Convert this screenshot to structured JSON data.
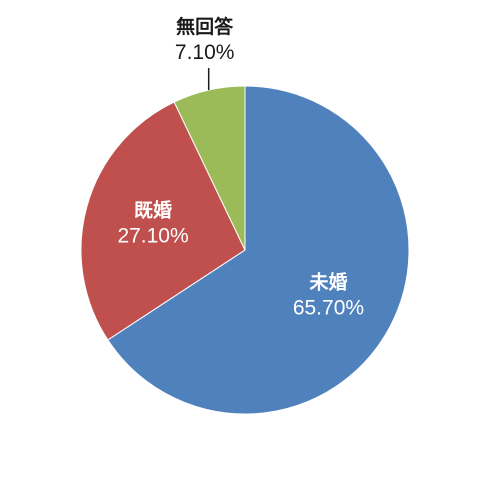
{
  "chart_data": {
    "type": "pie",
    "title": "",
    "start": "12 o'clock",
    "direction": "clockwise",
    "slices": [
      {
        "label": "未婚",
        "value": 65.7,
        "value_text": "65.70%",
        "color": "#4F81BD",
        "label_position": "inside"
      },
      {
        "label": "既婚",
        "value": 27.1,
        "value_text": "27.10%",
        "color": "#C0504D",
        "label_position": "inside"
      },
      {
        "label": "無回答",
        "value": 7.1,
        "value_text": "7.10%",
        "color": "#9BBB59",
        "label_position": "outside"
      }
    ]
  }
}
